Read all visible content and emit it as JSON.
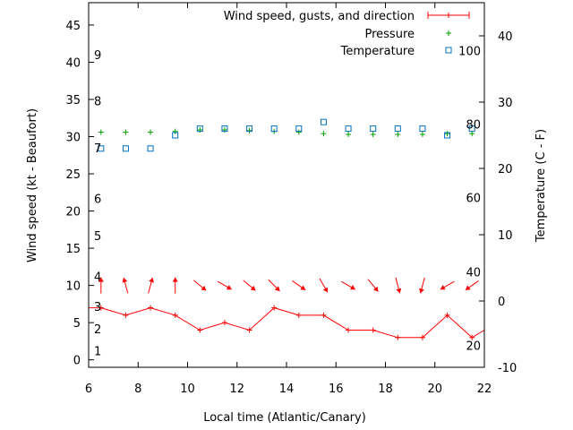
{
  "chart_data": {
    "type": "line",
    "xlabel": "Local time (Atlantic/Canary)",
    "ylabel_left": "Wind speed (kt - Beaufort)",
    "ylabel_right": "Temperature (C - F)",
    "xlim": [
      6,
      22
    ],
    "ylim_left": [
      -1,
      48
    ],
    "ylim_right": [
      -10,
      45
    ],
    "x_ticks": [
      6,
      8,
      10,
      12,
      14,
      16,
      18,
      20,
      22
    ],
    "y_left_ticks": [
      0,
      5,
      10,
      15,
      20,
      25,
      30,
      35,
      40,
      45
    ],
    "y_right_ticks": [
      -10,
      0,
      10,
      20,
      30,
      40
    ],
    "beaufort_ticks": [
      {
        "label": "1",
        "kt": 1.2
      },
      {
        "label": "2",
        "kt": 4.2
      },
      {
        "label": "3",
        "kt": 7.2
      },
      {
        "label": "4",
        "kt": 11.2
      },
      {
        "label": "5",
        "kt": 16.7
      },
      {
        "label": "6",
        "kt": 21.7
      },
      {
        "label": "7",
        "kt": 28.5
      },
      {
        "label": "8",
        "kt": 34.8
      },
      {
        "label": "9",
        "kt": 41.0
      }
    ],
    "fahrenheit_ticks": [
      {
        "label": "20",
        "c": -6.7
      },
      {
        "label": "40",
        "c": 4.4
      },
      {
        "label": "60",
        "c": 15.6
      },
      {
        "label": "80",
        "c": 26.7
      },
      {
        "label": "100",
        "c": 37.8
      }
    ],
    "legend_position": "top-right",
    "series": [
      {
        "name": "Wind speed, gusts, and direction",
        "color": "#ff0000",
        "x": [
          6,
          6.5,
          7.5,
          8.5,
          9.5,
          10.5,
          11.5,
          12.5,
          13.5,
          14.5,
          15.5,
          16.5,
          17.5,
          18.5,
          19.5,
          20.5,
          21.5,
          22
        ],
        "y": [
          7,
          7,
          6,
          7,
          6,
          4,
          5,
          4,
          7,
          6,
          6,
          4,
          4,
          3,
          3,
          6,
          3,
          4
        ],
        "direction_arrows": [
          {
            "x": 6.5,
            "dir": 180
          },
          {
            "x": 7.5,
            "dir": 165
          },
          {
            "x": 8.5,
            "dir": 195
          },
          {
            "x": 9.5,
            "dir": 180
          },
          {
            "x": 10.5,
            "dir": 310
          },
          {
            "x": 11.5,
            "dir": 300
          },
          {
            "x": 12.5,
            "dir": 310
          },
          {
            "x": 13.5,
            "dir": 315
          },
          {
            "x": 14.5,
            "dir": 305
          },
          {
            "x": 15.5,
            "dir": 330
          },
          {
            "x": 16.5,
            "dir": 300
          },
          {
            "x": 17.5,
            "dir": 320
          },
          {
            "x": 18.5,
            "dir": 345
          },
          {
            "x": 19.5,
            "dir": 15
          },
          {
            "x": 20.5,
            "dir": 60
          },
          {
            "x": 21.5,
            "dir": 55
          }
        ]
      },
      {
        "name": "Pressure",
        "color": "#00a000",
        "x": [
          6.5,
          7.5,
          8.5,
          9.5,
          10.5,
          11.5,
          12.5,
          13.5,
          14.5,
          15.5,
          16.5,
          17.5,
          18.5,
          19.5,
          20.5,
          21.5
        ],
        "y": [
          30.6,
          30.6,
          30.6,
          30.7,
          30.9,
          30.9,
          30.8,
          30.7,
          30.6,
          30.4,
          30.3,
          30.3,
          30.3,
          30.3,
          30.4,
          30.4
        ]
      },
      {
        "name": "Temperature",
        "color": "#0070c0",
        "x": [
          6.5,
          7.5,
          8.5,
          9.5,
          10.5,
          11.5,
          12.5,
          13.5,
          14.5,
          15.5,
          16.5,
          17.5,
          18.5,
          19.5,
          20.5,
          21.5
        ],
        "y": [
          23,
          23,
          23,
          25,
          26,
          26,
          26,
          26,
          26,
          27,
          26,
          26,
          26,
          26,
          25,
          26
        ]
      }
    ]
  }
}
